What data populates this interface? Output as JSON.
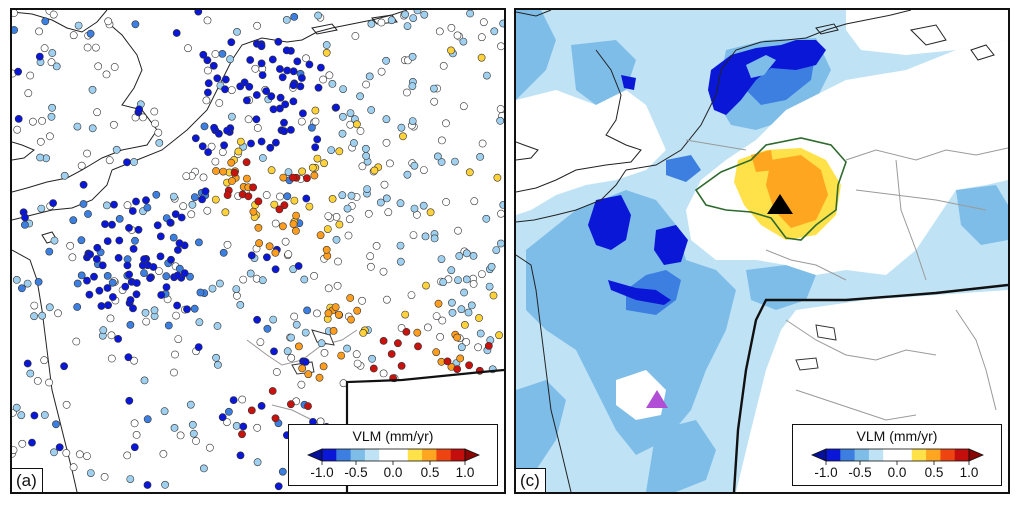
{
  "panels": [
    {
      "id": "a",
      "label": "(a)",
      "legend": {
        "title": "VLM (mm/yr)",
        "ticks": [
          "-1.0",
          "-0.5",
          "0.0",
          "0.5",
          "1.0"
        ]
      },
      "site_value_counts": {
        "blue_dark": 170,
        "blue_mid": 60,
        "blue_light": 170,
        "white": 260,
        "yellow": 45,
        "orange": 45,
        "red": 40
      }
    },
    {
      "id": "c",
      "label": "(c)",
      "legend": {
        "title": "VLM (mm/yr)",
        "ticks": [
          "-1.0",
          "-0.5",
          "0.0",
          "0.5",
          "1.0"
        ]
      },
      "markers": [
        {
          "name": "black-triangle",
          "color": "#000000"
        },
        {
          "name": "purple-triangle",
          "color": "#b04fd6"
        }
      ]
    }
  ],
  "colorbar": {
    "colors": [
      "#0b17d6",
      "#3c7fe0",
      "#7fbde9",
      "#bfe3f5",
      "#ffffff",
      "#ffffff",
      "#ffe14a",
      "#ffa620",
      "#ee4411",
      "#c40e0e"
    ],
    "left_arrow_color": "#06109a",
    "right_arrow_color": "#8a0606"
  }
}
